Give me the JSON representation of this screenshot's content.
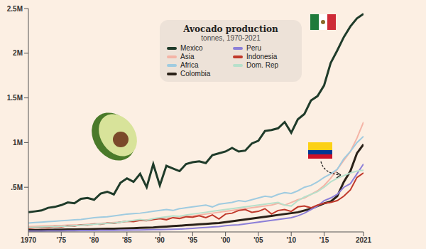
{
  "chart_data": {
    "type": "line",
    "title": "Avocado production",
    "subtitle": "tonnes, 1970-2021",
    "x": [
      1970,
      1971,
      1972,
      1973,
      1974,
      1975,
      1976,
      1977,
      1978,
      1979,
      1980,
      1981,
      1982,
      1983,
      1984,
      1985,
      1986,
      1987,
      1988,
      1989,
      1990,
      1991,
      1992,
      1993,
      1994,
      1995,
      1996,
      1997,
      1998,
      1999,
      2000,
      2001,
      2002,
      2003,
      2004,
      2005,
      2006,
      2007,
      2008,
      2009,
      2010,
      2011,
      2012,
      2013,
      2014,
      2015,
      2016,
      2017,
      2018,
      2019,
      2020,
      2021
    ],
    "xlim": [
      1970,
      2021
    ],
    "xticks": [
      1970,
      {
        "value": 1975,
        "label": "'75"
      },
      {
        "value": 1980,
        "label": "'80"
      },
      {
        "value": 1985,
        "label": "'85"
      },
      {
        "value": 1990,
        "label": "'90"
      },
      {
        "value": 1995,
        "label": "'95"
      },
      {
        "value": 2000,
        "label": "'00"
      },
      {
        "value": 2005,
        "label": "'05"
      },
      {
        "value": 2010,
        "label": "'10"
      },
      {
        "value": 2015,
        "label": "'15"
      },
      2021
    ],
    "ylim": [
      0,
      2500000
    ],
    "yticks": [
      {
        "value": 500000,
        "label": ".5M"
      },
      {
        "value": 1000000,
        "label": "1M"
      },
      {
        "value": 1500000,
        "label": "1.5M"
      },
      {
        "value": 2000000,
        "label": "2M"
      },
      {
        "value": 2500000,
        "label": "2.5M"
      }
    ],
    "grid": false,
    "series": [
      {
        "name": "Mexico",
        "color": "#1f3b2a",
        "values": [
          220000,
          230000,
          240000,
          270000,
          280000,
          300000,
          330000,
          320000,
          370000,
          380000,
          360000,
          430000,
          450000,
          420000,
          550000,
          600000,
          560000,
          650000,
          500000,
          760000,
          520000,
          740000,
          710000,
          680000,
          760000,
          780000,
          790000,
          770000,
          860000,
          880000,
          900000,
          940000,
          900000,
          910000,
          990000,
          1020000,
          1130000,
          1140000,
          1160000,
          1230000,
          1110000,
          1260000,
          1320000,
          1470000,
          1520000,
          1640000,
          1890000,
          2030000,
          2180000,
          2300000,
          2390000,
          2440000
        ]
      },
      {
        "name": "Asia",
        "color": "#f4b4a6",
        "values": [
          60000,
          62000,
          65000,
          68000,
          70000,
          72000,
          75000,
          78000,
          80000,
          85000,
          90000,
          95000,
          100000,
          105000,
          110000,
          120000,
          125000,
          130000,
          135000,
          140000,
          150000,
          155000,
          160000,
          170000,
          175000,
          180000,
          190000,
          200000,
          210000,
          220000,
          230000,
          240000,
          250000,
          260000,
          270000,
          280000,
          290000,
          300000,
          320000,
          300000,
          330000,
          360000,
          380000,
          420000,
          460000,
          520000,
          600000,
          700000,
          800000,
          900000,
          1050000,
          1230000
        ]
      },
      {
        "name": "Africa",
        "color": "#9fcbe0",
        "values": [
          100000,
          105000,
          110000,
          115000,
          120000,
          125000,
          130000,
          135000,
          140000,
          150000,
          160000,
          165000,
          170000,
          180000,
          190000,
          200000,
          205000,
          210000,
          220000,
          230000,
          240000,
          250000,
          240000,
          260000,
          270000,
          280000,
          290000,
          300000,
          280000,
          310000,
          320000,
          330000,
          350000,
          340000,
          360000,
          380000,
          400000,
          390000,
          420000,
          440000,
          430000,
          460000,
          500000,
          520000,
          560000,
          610000,
          650000,
          700000,
          820000,
          900000,
          1000000,
          1070000
        ]
      },
      {
        "name": "Colombia",
        "color": "#2a2118",
        "values": [
          20000,
          20000,
          22000,
          22000,
          25000,
          25000,
          27000,
          28000,
          30000,
          30000,
          32000,
          33000,
          35000,
          35000,
          38000,
          40000,
          42000,
          45000,
          47000,
          50000,
          55000,
          60000,
          65000,
          70000,
          75000,
          80000,
          85000,
          90000,
          95000,
          100000,
          110000,
          120000,
          130000,
          140000,
          150000,
          160000,
          170000,
          180000,
          190000,
          200000,
          210000,
          220000,
          240000,
          260000,
          290000,
          320000,
          340000,
          400000,
          560000,
          680000,
          880000,
          980000
        ]
      },
      {
        "name": "Peru",
        "color": "#8c7fd8",
        "values": [
          10000,
          10000,
          10000,
          12000,
          12000,
          12000,
          14000,
          14000,
          15000,
          15000,
          16000,
          17000,
          18000,
          18000,
          20000,
          20000,
          22000,
          22000,
          24000,
          25000,
          26000,
          28000,
          30000,
          32000,
          35000,
          40000,
          45000,
          50000,
          55000,
          60000,
          70000,
          75000,
          80000,
          90000,
          100000,
          110000,
          120000,
          130000,
          140000,
          150000,
          160000,
          180000,
          210000,
          250000,
          290000,
          350000,
          380000,
          420000,
          500000,
          540000,
          650000,
          760000
        ]
      },
      {
        "name": "Indonesia",
        "color": "#c0392b",
        "values": [
          40000,
          45000,
          50000,
          45000,
          60000,
          55000,
          70000,
          65000,
          80000,
          75000,
          90000,
          85000,
          100000,
          95000,
          110000,
          120000,
          115000,
          130000,
          125000,
          140000,
          150000,
          135000,
          160000,
          150000,
          170000,
          165000,
          180000,
          160000,
          190000,
          145000,
          200000,
          210000,
          240000,
          250000,
          220000,
          230000,
          260000,
          200000,
          240000,
          250000,
          230000,
          280000,
          290000,
          270000,
          300000,
          320000,
          330000,
          350000,
          400000,
          470000,
          610000,
          660000
        ]
      },
      {
        "name": "Dom. Rep",
        "color": "#b7e0cb",
        "values": [
          50000,
          52000,
          55000,
          57000,
          60000,
          62000,
          65000,
          70000,
          75000,
          80000,
          85000,
          90000,
          95000,
          100000,
          110000,
          120000,
          130000,
          140000,
          130000,
          150000,
          160000,
          170000,
          180000,
          175000,
          190000,
          200000,
          210000,
          220000,
          230000,
          240000,
          250000,
          260000,
          270000,
          280000,
          290000,
          300000,
          310000,
          320000,
          330000,
          300000,
          290000,
          350000,
          390000,
          420000,
          450000,
          500000,
          560000,
          600000,
          630000,
          660000,
          680000,
          690000
        ]
      }
    ]
  }
}
